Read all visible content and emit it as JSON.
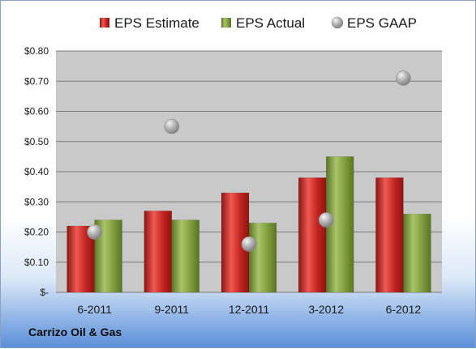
{
  "chart_data": {
    "type": "bar",
    "categories": [
      "6-2011",
      "9-2011",
      "12-2011",
      "3-2012",
      "6-2012"
    ],
    "series": [
      {
        "name": "EPS Estimate",
        "kind": "bar",
        "color": "#c0221f",
        "values": [
          0.22,
          0.27,
          0.33,
          0.38,
          0.38
        ]
      },
      {
        "name": "EPS Actual",
        "kind": "bar",
        "color": "#7c9b3a",
        "values": [
          0.24,
          0.24,
          0.23,
          0.45,
          0.26
        ]
      },
      {
        "name": "EPS GAAP",
        "kind": "marker",
        "color": "#a9a9a9",
        "values": [
          0.2,
          0.55,
          0.16,
          0.24,
          0.71
        ]
      }
    ],
    "yticks": [
      "$-",
      "$0.10",
      "$0.20",
      "$0.30",
      "$0.40",
      "$0.50",
      "$0.60",
      "$0.70",
      "$0.80"
    ],
    "ylim": [
      0,
      0.8
    ],
    "grid": true,
    "legend": "top",
    "plot_background": "#c9c9c9"
  },
  "footer": {
    "company": "Carrizo Oil & Gas"
  }
}
